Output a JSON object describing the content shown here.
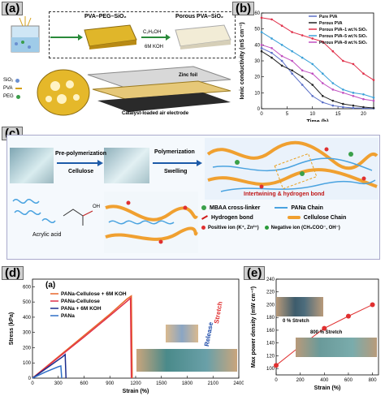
{
  "panel_a": {
    "label": "(a)",
    "stage1": "PVA–PEG–SiO₂",
    "stage2": "Porous PVA–SiO₂",
    "arrow_top": "C₂H₅OH",
    "arrow_bottom": "6M KOH",
    "legend": [
      "SiO₂",
      "PVA",
      "PEG"
    ],
    "zinc_foil": "Zinc foil",
    "air_electrode": "Catalyst-loaded air electrode"
  },
  "panel_b": {
    "label": "(b)",
    "chart_data": {
      "type": "line",
      "xlabel": "Time (h)",
      "ylabel": "Ionic conductivity (mS cm⁻¹)",
      "xlim": [
        0,
        22
      ],
      "ylim": [
        0,
        60
      ],
      "xticks": [
        "0",
        "5",
        "10",
        "15",
        "20"
      ],
      "yticks": [
        "0",
        "10",
        "20",
        "30",
        "40",
        "50",
        "60"
      ],
      "legend_position": "top-right",
      "series": [
        {
          "name": "Pure PVA",
          "color": "#5a6fc7",
          "x": [
            0,
            2,
            4,
            6,
            8,
            10,
            12,
            14,
            16,
            18,
            20,
            22
          ],
          "y": [
            38,
            35,
            30,
            22,
            15,
            8,
            4,
            2,
            1,
            0.5,
            0.3,
            0.2
          ]
        },
        {
          "name": "Porous PVA",
          "color": "#222222",
          "x": [
            0,
            2,
            4,
            6,
            8,
            10,
            12,
            14,
            16,
            18,
            20,
            22
          ],
          "y": [
            36,
            32,
            27,
            24,
            20,
            15,
            8,
            5,
            3,
            2,
            1,
            0.5
          ]
        },
        {
          "name": "Porous PVA–1 wt.% SiO₂",
          "color": "#e0304a",
          "x": [
            0,
            2,
            4,
            6,
            8,
            10,
            12,
            14,
            16,
            18,
            20,
            22
          ],
          "y": [
            57,
            56,
            52,
            48,
            46,
            44,
            42,
            36,
            30,
            28,
            22,
            18
          ]
        },
        {
          "name": "Porous PVA–5 wt.% SiO₂",
          "color": "#3aa0d8",
          "x": [
            0,
            2,
            4,
            6,
            8,
            10,
            12,
            14,
            16,
            18,
            20,
            22
          ],
          "y": [
            48,
            44,
            40,
            36,
            32,
            28,
            22,
            16,
            12,
            10,
            9,
            7
          ]
        },
        {
          "name": "Porous PVA–8 wt.% SiO₂",
          "color": "#c04fc0",
          "x": [
            0,
            2,
            4,
            6,
            8,
            10,
            12,
            14,
            16,
            18,
            20,
            22
          ],
          "y": [
            40,
            38,
            33,
            30,
            24,
            22,
            16,
            12,
            10,
            8,
            6,
            5
          ]
        }
      ]
    }
  },
  "panel_c": {
    "label": "(c)",
    "step1": "Pre-polymerization",
    "step1_sub": "Cellulose",
    "step2": "Polymerization",
    "step2_sub": "Swelling",
    "banner": "Intertwining & hydrogen bond",
    "acrylic": "Acrylic acid",
    "oh": "OH",
    "legend": {
      "mbaa": "MBAA cross-linker",
      "hbond": "Hydrogen bond",
      "positive": "Positive ion (K⁺, Zn²⁺)",
      "pana": "PANa Chain",
      "cellulose": "Cellulose Chain",
      "negative": "Negative ion (CH₃COO⁻, OH⁻)"
    }
  },
  "panel_d": {
    "label": "(d)",
    "inner_label": "(a)",
    "stretch": "Stretch",
    "release": "Release",
    "chart_data": {
      "type": "line",
      "xlabel": "Strain (%)",
      "ylabel": "Stress (kPa)",
      "xlim": [
        0,
        2400
      ],
      "ylim": [
        0,
        650
      ],
      "xticks": [
        "0",
        "300",
        "600",
        "900",
        "1200",
        "1500",
        "1800",
        "2100",
        "2400"
      ],
      "yticks": [
        "0",
        "100",
        "200",
        "300",
        "400",
        "500",
        "600"
      ],
      "legend_position": "top-left",
      "series": [
        {
          "name": "PANa-Cellulose + 6M KOH",
          "color": "#e8672a",
          "x": [
            0,
            300,
            600,
            900,
            1100,
            1150,
            1160
          ],
          "y": [
            0,
            140,
            280,
            420,
            520,
            540,
            0
          ]
        },
        {
          "name": "PANa-Cellulose",
          "color": "#e0304a",
          "x": [
            0,
            300,
            600,
            900,
            1100,
            1140,
            1150
          ],
          "y": [
            0,
            135,
            270,
            410,
            505,
            525,
            0
          ]
        },
        {
          "name": "PANa + 6M KOH",
          "color": "#1c2c8c",
          "x": [
            0,
            200,
            350,
            380,
            390
          ],
          "y": [
            0,
            80,
            140,
            155,
            0
          ]
        },
        {
          "name": "PANa",
          "color": "#2f6fc7",
          "x": [
            0,
            150,
            300,
            330,
            340
          ],
          "y": [
            0,
            40,
            75,
            80,
            0
          ]
        }
      ]
    }
  },
  "panel_e": {
    "label": "(e)",
    "cap1": "0 % Stretch",
    "cap2": "800 % Stretch",
    "chart_data": {
      "type": "line",
      "xlabel": "Strain (%)",
      "ylabel": "Max power density (mW cm⁻²)",
      "xlim": [
        0,
        850
      ],
      "ylim": [
        90,
        240
      ],
      "xticks": [
        "0",
        "200",
        "400",
        "600",
        "800"
      ],
      "yticks": [
        "100",
        "120",
        "140",
        "160",
        "180",
        "200",
        "220",
        "240"
      ],
      "series": [
        {
          "name": "",
          "color": "#e03030",
          "x": [
            0,
            200,
            400,
            600,
            800
          ],
          "y": [
            105,
            135,
            163,
            182,
            200
          ]
        }
      ]
    }
  }
}
